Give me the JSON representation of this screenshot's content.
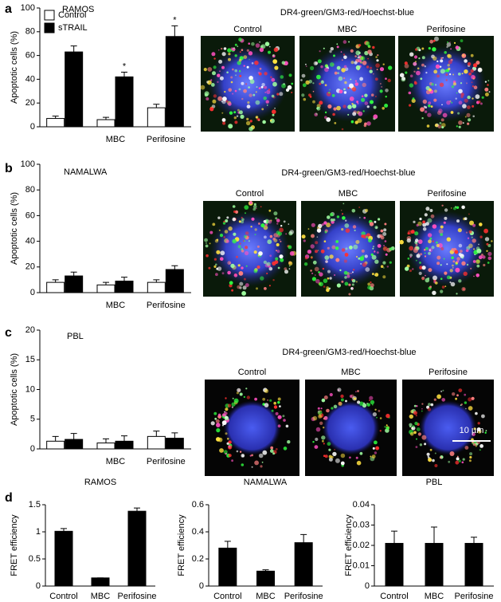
{
  "chart_data": [
    {
      "type": "grouped_bar",
      "panel": "a",
      "title": "RAMOS",
      "ylabel": "Apoptotic cells (%)",
      "categories": [
        null,
        "MBC",
        "Perifosine"
      ],
      "series": [
        {
          "name": "Control",
          "color": "#ffffff",
          "values": [
            7,
            6,
            16
          ],
          "errors": [
            2,
            2,
            3
          ]
        },
        {
          "name": "sTRAIL",
          "color": "#000000",
          "values": [
            63,
            42,
            76
          ],
          "errors": [
            5,
            4,
            9
          ],
          "significance": [
            null,
            "*",
            "*"
          ]
        }
      ],
      "ylim": [
        0,
        100
      ],
      "yticks": [
        0,
        20,
        40,
        60,
        80,
        100
      ],
      "legend": "upper left"
    },
    {
      "type": "grouped_bar",
      "panel": "b",
      "title": "NAMALWA",
      "ylabel": "Apoptotic cells (%)",
      "categories": [
        null,
        "MBC",
        "Perifosine"
      ],
      "series": [
        {
          "color": "#ffffff",
          "values": [
            8,
            6,
            8
          ],
          "errors": [
            2,
            2,
            2
          ]
        },
        {
          "color": "#000000",
          "values": [
            13,
            9,
            18
          ],
          "errors": [
            3,
            3,
            3
          ]
        }
      ],
      "ylim": [
        0,
        100
      ],
      "yticks": [
        0,
        20,
        40,
        60,
        80,
        100
      ]
    },
    {
      "type": "grouped_bar",
      "panel": "c",
      "title": "PBL",
      "ylabel": "Apoptotic cells (%)",
      "categories": [
        null,
        "MBC",
        "Perifosine"
      ],
      "series": [
        {
          "color": "#ffffff",
          "values": [
            1.3,
            1.0,
            2.1
          ],
          "errors": [
            0.8,
            0.7,
            0.9
          ]
        },
        {
          "color": "#000000",
          "values": [
            1.6,
            1.3,
            1.8
          ],
          "errors": [
            1.0,
            0.9,
            0.9
          ]
        }
      ],
      "ylim": [
        0,
        20
      ],
      "yticks": [
        0,
        5,
        10,
        15,
        20
      ]
    },
    {
      "type": "bar",
      "panel": "d",
      "title": "RAMOS",
      "ylabel": "FRET efficiency",
      "categories": [
        "Control",
        "MBC",
        "Perifosine"
      ],
      "values": [
        1.01,
        0.15,
        1.38
      ],
      "errors": [
        0.05,
        0,
        0.06
      ],
      "color": "#000000",
      "ylim": [
        0,
        1.5
      ],
      "yticks": [
        0,
        0.5,
        1,
        1.5
      ]
    },
    {
      "type": "bar",
      "title": "NAMALWA",
      "ylabel": "FRET efficiency",
      "categories": [
        "Control",
        "MBC",
        "Perifosine"
      ],
      "values": [
        0.28,
        0.11,
        0.32
      ],
      "errors": [
        0.05,
        0.01,
        0.06
      ],
      "color": "#000000",
      "ylim": [
        0,
        0.6
      ],
      "yticks": [
        0,
        0.2,
        0.4,
        0.6
      ]
    },
    {
      "type": "bar",
      "title": "PBL",
      "ylabel": "FRET efficiency",
      "categories": [
        "Control",
        "MBC",
        "Perifosine"
      ],
      "values": [
        0.021,
        0.021,
        0.021
      ],
      "errors": [
        0.006,
        0.008,
        0.003
      ],
      "color": "#000000",
      "ylim": [
        0,
        0.04
      ],
      "yticks": [
        0,
        0.01,
        0.02,
        0.03,
        0.04
      ]
    }
  ],
  "image_panels": [
    {
      "caption": "DR4-green/GM3-red/Hoechst-blue",
      "labels": [
        "Control",
        "MBC",
        "Perifosine"
      ]
    },
    {
      "caption": "DR4-green/GM3-red/Hoechst-blue",
      "labels": [
        "Control",
        "MBC",
        "Perifosine"
      ]
    },
    {
      "caption": "DR4-green/GM3-red/Hoechst-blue",
      "labels": [
        "Control",
        "MBC",
        "Perifosine"
      ],
      "scale_bar": "10 µm"
    }
  ]
}
